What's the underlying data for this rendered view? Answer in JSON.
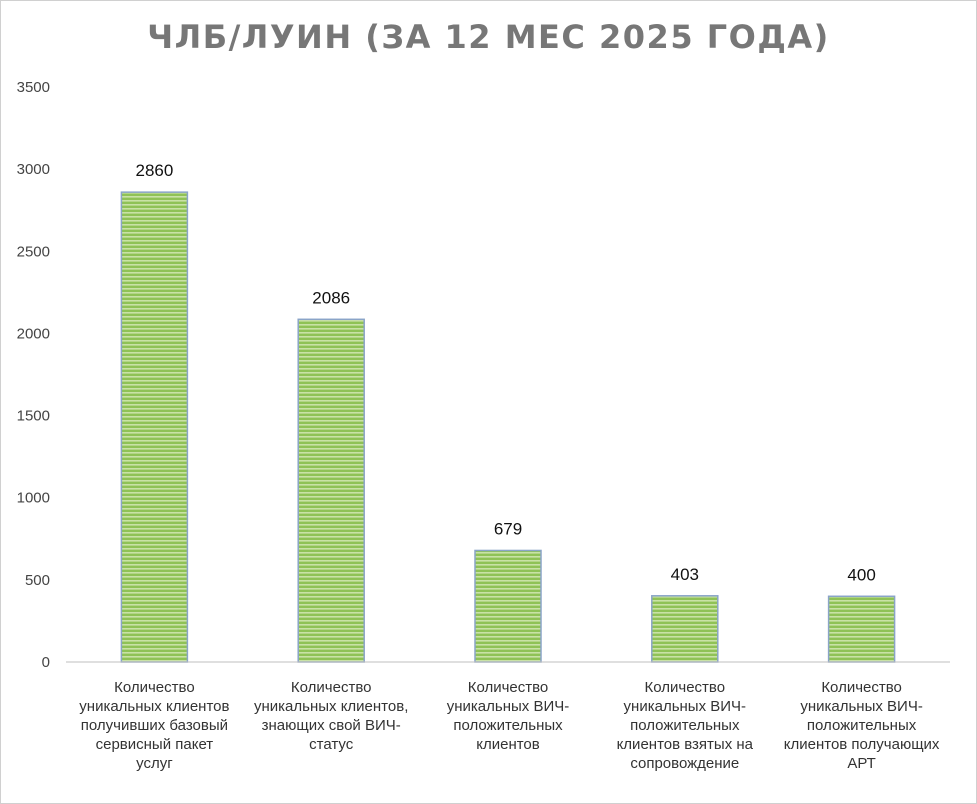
{
  "chart_data": {
    "type": "bar",
    "title": "ЧЛБ/ЛУИН (ЗА 12 МЕС 2025 ГОДА)",
    "categories": [
      "Количество уникальных клиентов получивших базовый сервисный пакет услуг",
      "Количество уникальных клиентов, знающих свой ВИЧ-статус",
      "Количество уникальных ВИЧ-положительных клиентов",
      "Количество уникальных ВИЧ-положительных клиентов взятых на сопровождение",
      "Количество уникальных ВИЧ-положительных клиентов получающих АРТ"
    ],
    "values": [
      2860,
      2086,
      679,
      403,
      400
    ],
    "data_labels": [
      "2860",
      "2086",
      "679",
      "403",
      "400"
    ],
    "ylim": [
      0,
      3500
    ],
    "yticks": [
      "0",
      "500",
      "1000",
      "1500",
      "2000",
      "2500",
      "3000",
      "3500"
    ],
    "grid": false,
    "legend": "none",
    "colors": {
      "bar_fill": "#8fc256",
      "bar_stripe": "#c9e2a6",
      "bar_edge": "#8aa4c8",
      "title": "#777777"
    }
  }
}
